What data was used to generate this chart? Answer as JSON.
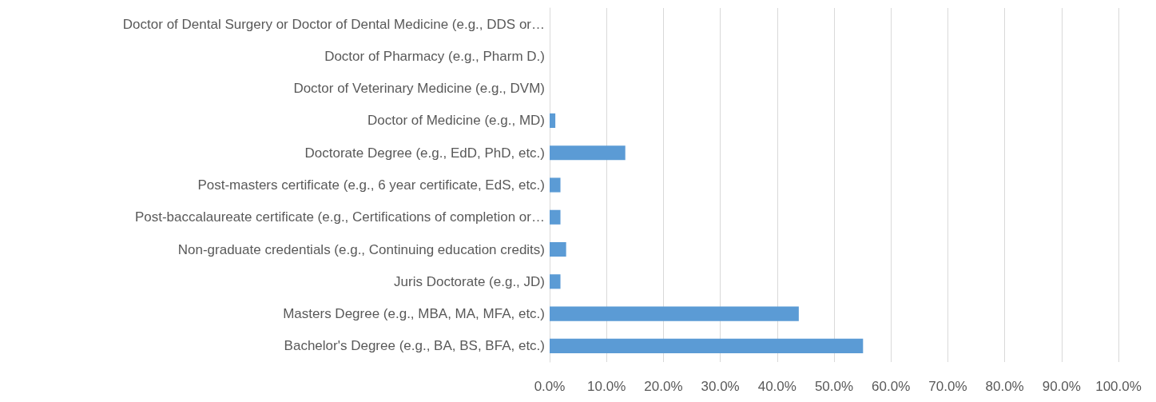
{
  "chart_data": {
    "type": "bar",
    "orientation": "horizontal",
    "categories": [
      "Doctor of Dental Surgery or Doctor of Dental Medicine (e.g., DDS or…",
      "Doctor of Pharmacy (e.g., Pharm D.)",
      "Doctor of Veterinary Medicine (e.g., DVM)",
      "Doctor of Medicine (e.g., MD)",
      "Doctorate Degree (e.g., EdD, PhD, etc.)",
      "Post-masters certificate (e.g., 6 year certificate, EdS, etc.)",
      "Post-baccalaureate certificate (e.g., Certifications of completion or…",
      "Non-graduate credentials (e.g., Continuing education credits)",
      "Juris Doctorate (e.g., JD)",
      "Masters Degree (e.g., MBA, MA, MFA, etc.)",
      "Bachelor's Degree (e.g., BA, BS, BFA, etc.)"
    ],
    "values": [
      0,
      0,
      0,
      1.0,
      13.3,
      1.9,
      1.9,
      2.9,
      1.9,
      43.8,
      55.1
    ],
    "color": "#5b9bd5",
    "xlim": [
      0,
      100
    ],
    "xticks": [
      {
        "value": 0,
        "label": "0.0%"
      },
      {
        "value": 10,
        "label": "10.0%"
      },
      {
        "value": 20,
        "label": "20.0%"
      },
      {
        "value": 30,
        "label": "30.0%"
      },
      {
        "value": 40,
        "label": "40.0%"
      },
      {
        "value": 50,
        "label": "50.0%"
      },
      {
        "value": 60,
        "label": "60.0%"
      },
      {
        "value": 70,
        "label": "70.0%"
      },
      {
        "value": 80,
        "label": "80.0%"
      },
      {
        "value": 90,
        "label": "90.0%"
      },
      {
        "value": 100,
        "label": "100.0%"
      }
    ],
    "grid": "x"
  }
}
